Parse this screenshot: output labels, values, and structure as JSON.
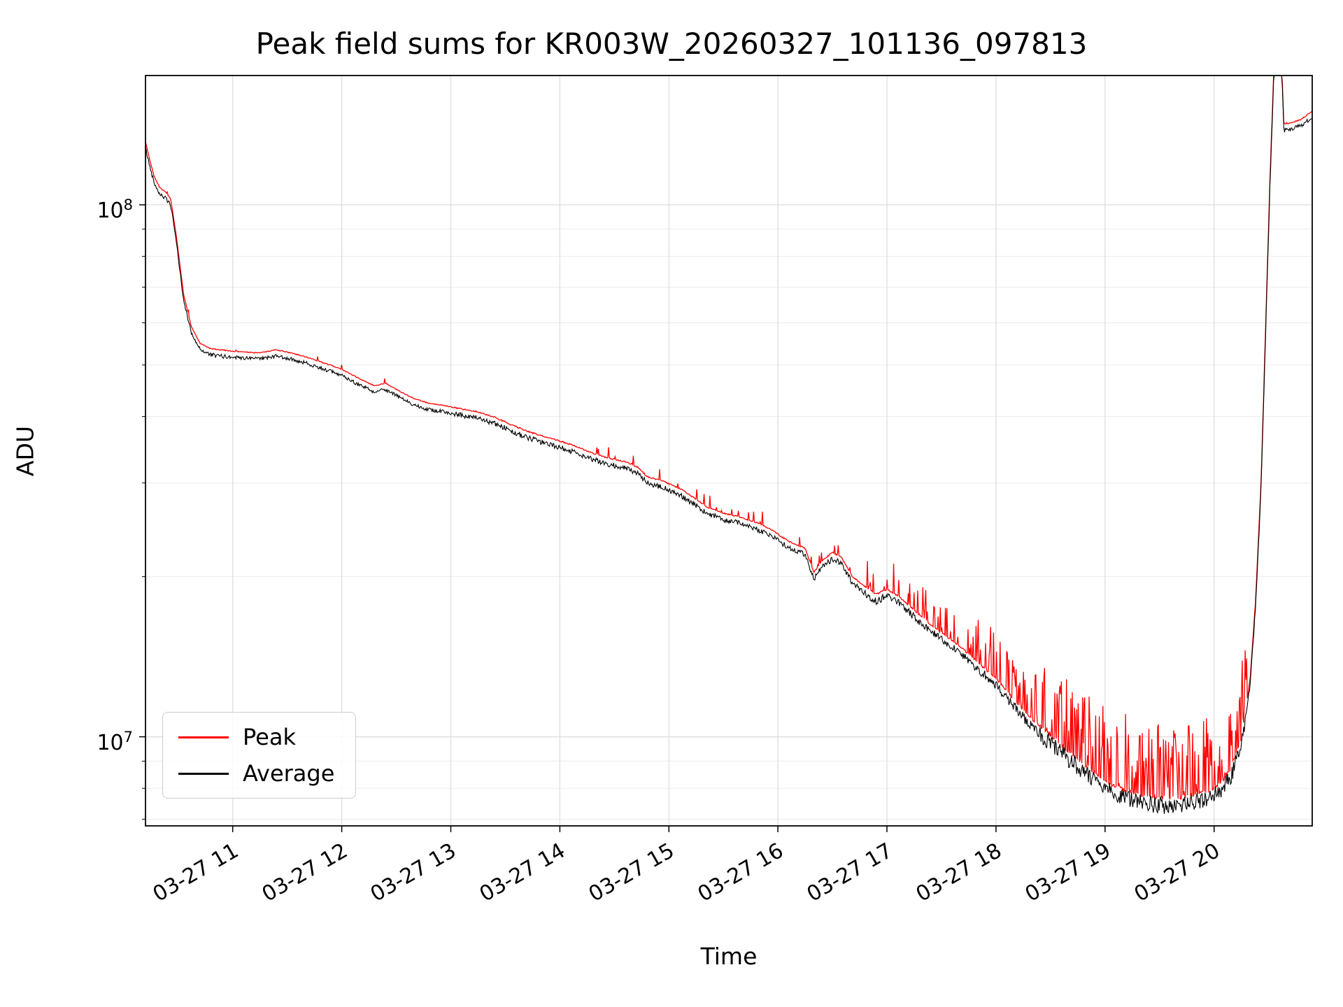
{
  "chart_data": {
    "type": "line",
    "title": "Peak field sums for KR003W_20260327_101136_097813",
    "xlabel": "Time",
    "ylabel": "ADU",
    "grid": "on",
    "legend_position": "lower left",
    "y_scale": "log",
    "xlim": [
      10.2,
      20.9
    ],
    "ylim": [
      6800000,
      175000000
    ],
    "x_ticks": [
      {
        "value": 11,
        "label": "03-27 11"
      },
      {
        "value": 12,
        "label": "03-27 12"
      },
      {
        "value": 13,
        "label": "03-27 13"
      },
      {
        "value": 14,
        "label": "03-27 14"
      },
      {
        "value": 15,
        "label": "03-27 15"
      },
      {
        "value": 16,
        "label": "03-27 16"
      },
      {
        "value": 17,
        "label": "03-27 17"
      },
      {
        "value": 18,
        "label": "03-27 18"
      },
      {
        "value": 19,
        "label": "03-27 19"
      },
      {
        "value": 20,
        "label": "03-27 20"
      }
    ],
    "y_ticks": [
      {
        "value": 10000000,
        "exp": 7
      },
      {
        "value": 100000000,
        "exp": 8
      }
    ],
    "series": [
      {
        "name": "Peak",
        "color": "#ff0000",
        "derived_from": "Average",
        "base_ratio": 1.025
      },
      {
        "name": "Average",
        "color": "#000000"
      }
    ],
    "average_anchors": [
      [
        10.2,
        128000000
      ],
      [
        10.24,
        118000000
      ],
      [
        10.28,
        110000000
      ],
      [
        10.33,
        105000000
      ],
      [
        10.38,
        103000000
      ],
      [
        10.43,
        100000000
      ],
      [
        10.48,
        86000000
      ],
      [
        10.55,
        66000000
      ],
      [
        10.62,
        57500000
      ],
      [
        10.7,
        53500000
      ],
      [
        10.8,
        52200000
      ],
      [
        10.95,
        51800000
      ],
      [
        11.1,
        51500000
      ],
      [
        11.25,
        51300000
      ],
      [
        11.4,
        52000000
      ],
      [
        11.55,
        51200000
      ],
      [
        11.7,
        50200000
      ],
      [
        11.85,
        49000000
      ],
      [
        12.0,
        47800000
      ],
      [
        12.15,
        46000000
      ],
      [
        12.3,
        44500000
      ],
      [
        12.4,
        45000000
      ],
      [
        12.5,
        43800000
      ],
      [
        12.65,
        42200000
      ],
      [
        12.8,
        41200000
      ],
      [
        12.95,
        40800000
      ],
      [
        13.1,
        40200000
      ],
      [
        13.25,
        39700000
      ],
      [
        13.4,
        38800000
      ],
      [
        13.55,
        37600000
      ],
      [
        13.7,
        36500000
      ],
      [
        13.85,
        35700000
      ],
      [
        14.0,
        35000000
      ],
      [
        14.15,
        34200000
      ],
      [
        14.3,
        33200000
      ],
      [
        14.45,
        32500000
      ],
      [
        14.6,
        32000000
      ],
      [
        14.72,
        31200000
      ],
      [
        14.8,
        30000000
      ],
      [
        14.95,
        29400000
      ],
      [
        15.1,
        28500000
      ],
      [
        15.25,
        27200000
      ],
      [
        15.35,
        26300000
      ],
      [
        15.5,
        25600000
      ],
      [
        15.65,
        25200000
      ],
      [
        15.8,
        24600000
      ],
      [
        15.95,
        23800000
      ],
      [
        16.05,
        23000000
      ],
      [
        16.15,
        22400000
      ],
      [
        16.25,
        22000000
      ],
      [
        16.33,
        19800000
      ],
      [
        16.4,
        20800000
      ],
      [
        16.5,
        21600000
      ],
      [
        16.58,
        21200000
      ],
      [
        16.68,
        19500000
      ],
      [
        16.8,
        18600000
      ],
      [
        16.9,
        18000000
      ],
      [
        17.0,
        18400000
      ],
      [
        17.1,
        17900000
      ],
      [
        17.25,
        16800000
      ],
      [
        17.4,
        15800000
      ],
      [
        17.55,
        15000000
      ],
      [
        17.7,
        14200000
      ],
      [
        17.85,
        13300000
      ],
      [
        18.0,
        12500000
      ],
      [
        18.15,
        11500000
      ],
      [
        18.3,
        10600000
      ],
      [
        18.45,
        9900000
      ],
      [
        18.6,
        9300000
      ],
      [
        18.75,
        8800000
      ],
      [
        18.9,
        8300000
      ],
      [
        19.05,
        7900000
      ],
      [
        19.2,
        7650000
      ],
      [
        19.35,
        7500000
      ],
      [
        19.5,
        7420000
      ],
      [
        19.65,
        7420000
      ],
      [
        19.8,
        7500000
      ],
      [
        19.95,
        7650000
      ],
      [
        20.05,
        7900000
      ],
      [
        20.15,
        8400000
      ],
      [
        20.25,
        9600000
      ],
      [
        20.33,
        12500000
      ],
      [
        20.38,
        17500000
      ],
      [
        20.43,
        29000000
      ],
      [
        20.47,
        55000000
      ],
      [
        20.51,
        105000000
      ],
      [
        20.55,
        180000000
      ],
      [
        20.62,
        178000000
      ],
      [
        20.64,
        138000000
      ],
      [
        20.72,
        139000000
      ],
      [
        20.8,
        141000000
      ],
      [
        20.9,
        146000000
      ]
    ],
    "noise_regions": [
      [
        11.0,
        0.004
      ],
      [
        13.0,
        0.0035
      ],
      [
        16.8,
        0.005
      ],
      [
        17.8,
        0.007
      ],
      [
        18.4,
        0.009
      ],
      [
        20.28,
        0.016
      ],
      [
        21.0,
        0.004
      ]
    ],
    "peak_spike_regions": [
      [
        14.0,
        0.02,
        0.012
      ],
      [
        16.8,
        0.06,
        0.025
      ],
      [
        17.8,
        0.18,
        0.06
      ],
      [
        18.4,
        0.3,
        0.09
      ],
      [
        20.3,
        0.45,
        0.14
      ],
      [
        21.0,
        0.03,
        0.01
      ]
    ],
    "seed": 42,
    "colors": {
      "grid_major": "#dcdcdc",
      "grid_minor": "#ececec",
      "frame": "#000000"
    }
  }
}
